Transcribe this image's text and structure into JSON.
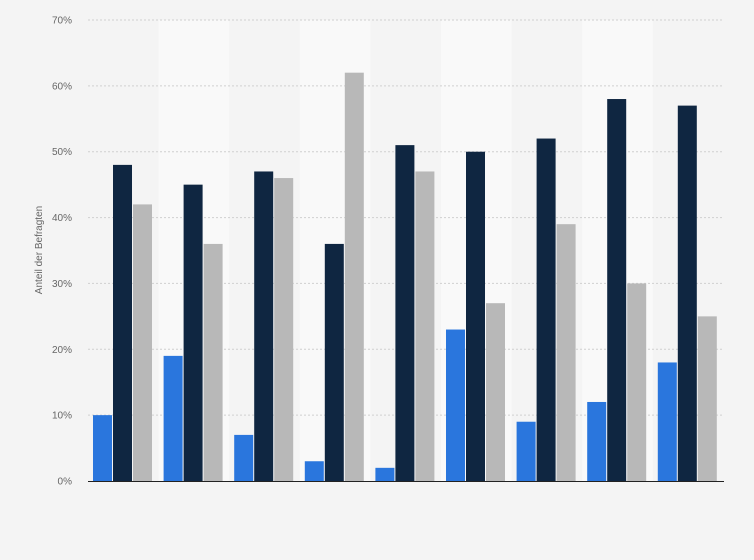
{
  "chart_data": {
    "type": "bar",
    "title": "",
    "xlabel": "",
    "ylabel": "Anteil der Befragten",
    "ylim": [
      0,
      70
    ],
    "yticks": [
      0,
      10,
      20,
      30,
      40,
      50,
      60,
      70
    ],
    "ytick_labels": [
      "0%",
      "10%",
      "20%",
      "30%",
      "40%",
      "50%",
      "60%",
      "70%"
    ],
    "grid": true,
    "legend": "none",
    "categories": [
      "",
      "",
      "",
      "",
      "",
      "",
      "",
      "",
      ""
    ],
    "series": [
      {
        "color": "#2a76dd",
        "values": [
          10,
          19,
          7,
          3,
          2,
          23,
          9,
          12,
          18
        ]
      },
      {
        "color": "#0f2641",
        "values": [
          48,
          45,
          47,
          36,
          51,
          50,
          52,
          58,
          57
        ]
      },
      {
        "color": "#b8b8b8",
        "values": [
          42,
          36,
          46,
          62,
          47,
          27,
          39,
          30,
          25
        ]
      }
    ]
  },
  "colors": {
    "background": "#f4f4f4",
    "band_light": "#f9f9f9",
    "gridline": "#d0d0d0",
    "axis": "#222222"
  }
}
